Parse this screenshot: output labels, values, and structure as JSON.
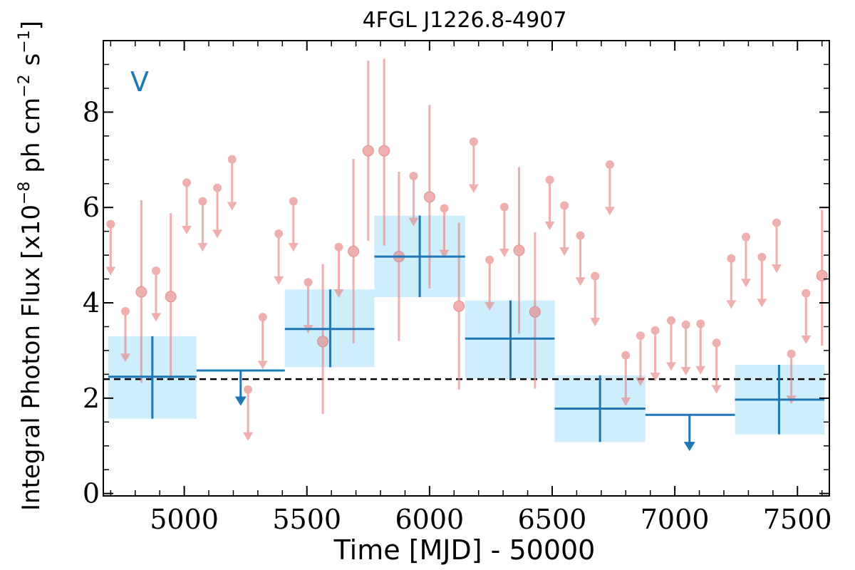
{
  "chart_data": {
    "type": "scatter",
    "title": "4FGL J1226.8-4907",
    "xlabel": "Time [MJD] - 50000",
    "ylabel": "Integral Photon Flux [x10",
    "ylabel_exp": "−8",
    "ylabel_units": "ph cm",
    "ylabel_exp2": "−2",
    "ylabel_tail": "s",
    "ylabel_exp3": "−1",
    "ylabel_close": "]",
    "annotation": "V",
    "xlim": [
      4670,
      7630
    ],
    "ylim": [
      -0.05,
      9.5
    ],
    "x_ticks": [
      "5000",
      "5500",
      "6000",
      "6500",
      "7000",
      "7500"
    ],
    "y_ticks": [
      "0",
      "2",
      "4",
      "6",
      "8"
    ],
    "colors": {
      "bins": "#1f77b4",
      "bin_box": "#cfeefc",
      "points": "#e88a8a",
      "mean_line": "#000000"
    },
    "mean_flux": 2.4,
    "long_bins": [
      {
        "x": 4870,
        "x_lo": 4690,
        "x_hi": 5050,
        "y": 2.45,
        "y_lo": 1.57,
        "y_hi": 3.3,
        "upper_limit": false
      },
      {
        "x": 5230,
        "x_lo": 5050,
        "x_hi": 5410,
        "y": 2.58,
        "upper_limit": true,
        "arrow_to": 1.9
      },
      {
        "x": 5595,
        "x_lo": 5410,
        "x_hi": 5775,
        "y": 3.45,
        "y_lo": 2.65,
        "y_hi": 4.28,
        "upper_limit": false
      },
      {
        "x": 5960,
        "x_lo": 5775,
        "x_hi": 6145,
        "y": 4.97,
        "y_lo": 4.12,
        "y_hi": 5.83,
        "upper_limit": false
      },
      {
        "x": 6330,
        "x_lo": 6145,
        "x_hi": 6510,
        "y": 3.25,
        "y_lo": 2.4,
        "y_hi": 4.05,
        "upper_limit": false
      },
      {
        "x": 6695,
        "x_lo": 6510,
        "x_hi": 6880,
        "y": 1.78,
        "y_lo": 1.08,
        "y_hi": 2.48,
        "upper_limit": false
      },
      {
        "x": 7060,
        "x_lo": 6880,
        "x_hi": 7245,
        "y": 1.65,
        "upper_limit": true,
        "arrow_to": 0.95
      },
      {
        "x": 7425,
        "x_lo": 7245,
        "x_hi": 7610,
        "y": 1.97,
        "y_lo": 1.24,
        "y_hi": 2.7,
        "upper_limit": false
      }
    ],
    "short_points": [
      {
        "x": 4700,
        "y": 5.65,
        "upper_limit": true,
        "arrow_to": 4.62
      },
      {
        "x": 4760,
        "y": 3.82,
        "upper_limit": true,
        "arrow_to": 2.8
      },
      {
        "x": 4825,
        "y": 4.23,
        "upper_limit": false,
        "y_lo": 2.32,
        "y_hi": 6.15
      },
      {
        "x": 4885,
        "y": 4.67,
        "upper_limit": true,
        "arrow_to": 3.65
      },
      {
        "x": 4945,
        "y": 4.13,
        "upper_limit": false,
        "y_lo": 2.42,
        "y_hi": 5.88
      },
      {
        "x": 5010,
        "y": 6.52,
        "upper_limit": true,
        "arrow_to": 5.48
      },
      {
        "x": 5075,
        "y": 6.13,
        "upper_limit": true,
        "arrow_to": 5.12
      },
      {
        "x": 5135,
        "y": 6.41,
        "upper_limit": true,
        "arrow_to": 5.4
      },
      {
        "x": 5195,
        "y": 7.01,
        "upper_limit": true,
        "arrow_to": 5.98
      },
      {
        "x": 5260,
        "y": 2.18,
        "upper_limit": true,
        "arrow_to": 1.15
      },
      {
        "x": 5320,
        "y": 3.7,
        "upper_limit": true,
        "arrow_to": 2.65
      },
      {
        "x": 5385,
        "y": 5.45,
        "upper_limit": true,
        "arrow_to": 4.42
      },
      {
        "x": 5445,
        "y": 6.13,
        "upper_limit": true,
        "arrow_to": 5.12
      },
      {
        "x": 5505,
        "y": 4.43,
        "upper_limit": true,
        "arrow_to": 3.4
      },
      {
        "x": 5565,
        "y": 3.19,
        "upper_limit": false,
        "y_lo": 1.67,
        "y_hi": 4.81
      },
      {
        "x": 5630,
        "y": 5.17,
        "upper_limit": true,
        "arrow_to": 4.15
      },
      {
        "x": 5690,
        "y": 5.08,
        "upper_limit": false,
        "y_lo": 3.15,
        "y_hi": 7.02
      },
      {
        "x": 5750,
        "y": 7.19,
        "upper_limit": false,
        "y_lo": 5.3,
        "y_hi": 9.08
      },
      {
        "x": 5815,
        "y": 7.19,
        "upper_limit": false,
        "y_lo": 5.2,
        "y_hi": 9.12
      },
      {
        "x": 5875,
        "y": 4.97,
        "upper_limit": false,
        "y_lo": 3.2,
        "y_hi": 6.75
      },
      {
        "x": 5935,
        "y": 6.66,
        "upper_limit": true,
        "arrow_to": 5.65
      },
      {
        "x": 6000,
        "y": 6.22,
        "upper_limit": false,
        "y_lo": 4.3,
        "y_hi": 8.15
      },
      {
        "x": 6060,
        "y": 5.98,
        "upper_limit": true,
        "arrow_to": 4.98
      },
      {
        "x": 6120,
        "y": 3.93,
        "upper_limit": false,
        "y_lo": 2.18,
        "y_hi": 5.68
      },
      {
        "x": 6180,
        "y": 7.38,
        "upper_limit": true,
        "arrow_to": 6.35
      },
      {
        "x": 6245,
        "y": 4.9,
        "upper_limit": true,
        "arrow_to": 3.88
      },
      {
        "x": 6305,
        "y": 6.01,
        "upper_limit": true,
        "arrow_to": 5
      },
      {
        "x": 6365,
        "y": 5.1,
        "upper_limit": false,
        "y_lo": 3.35,
        "y_hi": 6.85
      },
      {
        "x": 6430,
        "y": 3.81,
        "upper_limit": false,
        "y_lo": 2.2,
        "y_hi": 5.48
      },
      {
        "x": 6490,
        "y": 6.58,
        "upper_limit": true,
        "arrow_to": 5.57
      },
      {
        "x": 6550,
        "y": 6.04,
        "upper_limit": true,
        "arrow_to": 5.03
      },
      {
        "x": 6615,
        "y": 5.41,
        "upper_limit": true,
        "arrow_to": 4.4
      },
      {
        "x": 6675,
        "y": 4.56,
        "upper_limit": true,
        "arrow_to": 3.55
      },
      {
        "x": 6735,
        "y": 6.9,
        "upper_limit": true,
        "arrow_to": 5.88
      },
      {
        "x": 6800,
        "y": 2.9,
        "upper_limit": true,
        "arrow_to": 1.88
      },
      {
        "x": 6860,
        "y": 3.31,
        "upper_limit": true,
        "arrow_to": 2.3
      },
      {
        "x": 6920,
        "y": 3.42,
        "upper_limit": true,
        "arrow_to": 2.4
      },
      {
        "x": 6985,
        "y": 3.63,
        "upper_limit": true,
        "arrow_to": 2.62
      },
      {
        "x": 7045,
        "y": 3.54,
        "upper_limit": true,
        "arrow_to": 2.52
      },
      {
        "x": 7105,
        "y": 3.56,
        "upper_limit": true,
        "arrow_to": 2.54
      },
      {
        "x": 7170,
        "y": 3.16,
        "upper_limit": true,
        "arrow_to": 2.14
      },
      {
        "x": 7230,
        "y": 4.93,
        "upper_limit": true,
        "arrow_to": 3.92
      },
      {
        "x": 7290,
        "y": 5.38,
        "upper_limit": true,
        "arrow_to": 4.37
      },
      {
        "x": 7355,
        "y": 4.96,
        "upper_limit": true,
        "arrow_to": 3.95
      },
      {
        "x": 7415,
        "y": 5.68,
        "upper_limit": true,
        "arrow_to": 4.67
      },
      {
        "x": 7475,
        "y": 2.93,
        "upper_limit": true,
        "arrow_to": 1.92
      },
      {
        "x": 7535,
        "y": 4.2,
        "upper_limit": true,
        "arrow_to": 3.18
      },
      {
        "x": 7600,
        "y": 4.57,
        "upper_limit": false,
        "y_lo": 3.1,
        "y_hi": 5.95
      }
    ]
  }
}
